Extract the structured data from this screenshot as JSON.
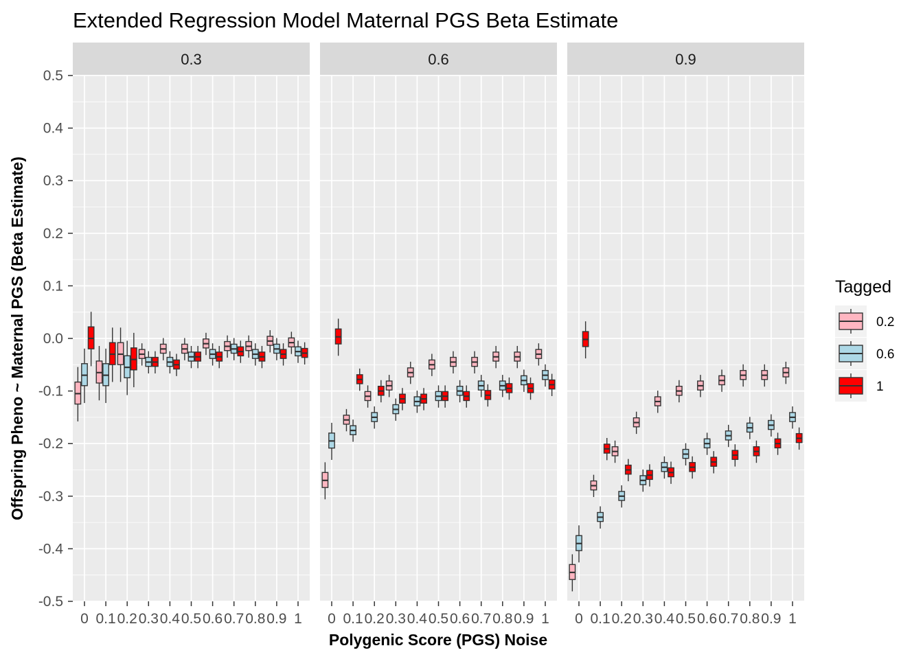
{
  "chart_data": {
    "type": "boxplot",
    "title": "Extended Regression Model Maternal PGS Beta Estimate",
    "xlabel": "Polygenic Score (PGS) Noise",
    "ylabel": "Offspring Pheno ~ Maternal PGS (Beta Estimate)",
    "ylim": [
      -0.5,
      0.5
    ],
    "y_ticks": [
      "0.5",
      "0.4",
      "0.3",
      "0.2",
      "0.1",
      "0.0",
      "-0.1",
      "-0.2",
      "-0.3",
      "-0.4",
      "-0.5"
    ],
    "x_categories": [
      "0",
      "0.1",
      "0.2",
      "0.3",
      "0.4",
      "0.5",
      "0.6",
      "0.7",
      "0.8",
      "0.9",
      "1"
    ],
    "facets": [
      "0.3",
      "0.6",
      "0.9"
    ],
    "legend": {
      "title": "Tagged",
      "position": "right",
      "items": [
        {
          "label": "0.2",
          "color": "#FFB6C1"
        },
        {
          "label": "0.6",
          "color": "#ADD8E6"
        },
        {
          "label": "1",
          "color": "#FF0000"
        }
      ]
    },
    "grid": true,
    "panel_background": "#EBEBEB",
    "strip_background": "#D9D9D9",
    "series_order": [
      "0.2",
      "0.6",
      "1"
    ],
    "medians": {
      "0.3": {
        "0.2": [
          -0.105,
          -0.065,
          -0.03,
          -0.03,
          -0.02,
          -0.02,
          -0.01,
          -0.015,
          -0.015,
          -0.005,
          -0.008
        ],
        "0.6": [
          -0.07,
          -0.07,
          -0.055,
          -0.045,
          -0.045,
          -0.035,
          -0.03,
          -0.02,
          -0.03,
          -0.02,
          -0.025
        ],
        "1": [
          0.0,
          -0.03,
          -0.04,
          -0.045,
          -0.05,
          -0.035,
          -0.035,
          -0.025,
          -0.035,
          -0.03,
          -0.028
        ]
      },
      "0.6": {
        "0.2": [
          -0.27,
          -0.155,
          -0.11,
          -0.09,
          -0.065,
          -0.05,
          -0.045,
          -0.045,
          -0.035,
          -0.035,
          -0.03
        ],
        "0.6": [
          -0.195,
          -0.175,
          -0.15,
          -0.135,
          -0.12,
          -0.11,
          -0.1,
          -0.09,
          -0.09,
          -0.08,
          -0.07
        ],
        "1": [
          0.003,
          -0.078,
          -0.1,
          -0.115,
          -0.115,
          -0.11,
          -0.11,
          -0.108,
          -0.095,
          -0.095,
          -0.088
        ]
      },
      "0.9": {
        "0.2": [
          -0.445,
          -0.28,
          -0.215,
          -0.16,
          -0.12,
          -0.1,
          -0.09,
          -0.08,
          -0.07,
          -0.07,
          -0.065
        ],
        "0.6": [
          -0.39,
          -0.34,
          -0.3,
          -0.27,
          -0.245,
          -0.22,
          -0.2,
          -0.185,
          -0.17,
          -0.165,
          -0.15
        ],
        "1": [
          -0.002,
          -0.21,
          -0.25,
          -0.26,
          -0.255,
          -0.245,
          -0.235,
          -0.222,
          -0.215,
          -0.2,
          -0.19
        ]
      }
    }
  }
}
